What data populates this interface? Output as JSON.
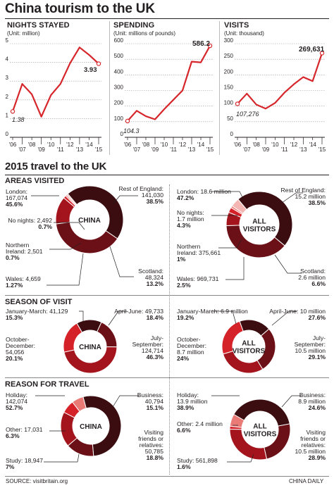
{
  "title": "China tourism to the UK",
  "line_charts": [
    {
      "title": "NIGHTS STAYED",
      "unit": "(Unit: million)",
      "y_ticks": [
        "0",
        "1",
        "2",
        "3",
        "4",
        "5"
      ],
      "x_top": [
        "'06",
        "'08",
        "'10",
        "'12",
        "'14"
      ],
      "x_bottom": [
        "'07",
        "'09",
        "'11",
        "'13",
        "'15"
      ],
      "first_label": "1.38",
      "last_label": "3.93"
    },
    {
      "title": "SPENDING",
      "unit": "(Unit: millions of pounds)",
      "y_ticks": [
        "0",
        "100",
        "200",
        "300",
        "400",
        "500",
        "600"
      ],
      "x_top": [
        "'06",
        "'08",
        "'10",
        "'12",
        "'14"
      ],
      "x_bottom": [
        "'07",
        "'09",
        "'11",
        "'13",
        "'15"
      ],
      "first_label": "104.3",
      "last_label": "586.2"
    },
    {
      "title": "VISITS",
      "unit": "(Unit: thousand)",
      "y_ticks": [
        "0",
        "50",
        "100",
        "150",
        "200",
        "250",
        "300"
      ],
      "x_top": [
        "'06",
        "'08",
        "'10",
        "'12",
        "'14"
      ],
      "x_bottom": [
        "'07",
        "'09",
        "'11",
        "'13",
        "'15"
      ],
      "first_label": "107,276",
      "last_label": "269,631"
    }
  ],
  "chart_data": [
    {
      "type": "line",
      "title": "NIGHTS STAYED",
      "ylabel": "(Unit: million)",
      "x": [
        "2006",
        "2007",
        "2008",
        "2009",
        "2010",
        "2011",
        "2012",
        "2013",
        "2014",
        "2015"
      ],
      "series": [
        {
          "values": [
            1.38,
            2.85,
            2.3,
            1.1,
            2.25,
            2.85,
            3.95,
            4.8,
            4.4,
            3.93
          ]
        }
      ],
      "ylim": [
        0,
        5
      ]
    },
    {
      "type": "line",
      "title": "SPENDING",
      "ylabel": "(Unit: millions of pounds)",
      "x": [
        "2006",
        "2007",
        "2008",
        "2009",
        "2010",
        "2011",
        "2012",
        "2013",
        "2014",
        "2015"
      ],
      "series": [
        {
          "values": [
            104.3,
            170,
            135,
            115,
            180,
            240,
            300,
            485,
            480,
            586.2
          ]
        }
      ],
      "ylim": [
        0,
        600
      ]
    },
    {
      "type": "line",
      "title": "VISITS",
      "ylabel": "(Unit: thousand)",
      "x": [
        "2006",
        "2007",
        "2008",
        "2009",
        "2010",
        "2011",
        "2012",
        "2013",
        "2014",
        "2015"
      ],
      "series": [
        {
          "values": [
            107.276,
            140,
            105,
            92,
            110,
            143,
            170,
            193,
            180,
            269.631
          ]
        }
      ],
      "ylim": [
        0,
        300
      ]
    },
    {
      "type": "pie",
      "title": "AREAS VISITED",
      "subtitle": "CHINA",
      "categories": [
        "London",
        "Rest of England",
        "Scotland",
        "Wales",
        "Northern Ireland",
        "No nights"
      ],
      "values": [
        45.6,
        38.5,
        13.2,
        1.27,
        0.7,
        0.7
      ]
    },
    {
      "type": "pie",
      "title": "AREAS VISITED",
      "subtitle": "ALL VISITORS",
      "categories": [
        "London",
        "Rest of England",
        "Scotland",
        "Wales",
        "Northern Ireland",
        "No nights"
      ],
      "values": [
        47.2,
        38.5,
        6.6,
        2.5,
        1,
        4.3
      ]
    },
    {
      "type": "pie",
      "title": "SEASON OF VISIT",
      "subtitle": "CHINA",
      "categories": [
        "January-March",
        "April-June",
        "July-September",
        "October-December"
      ],
      "values": [
        15.3,
        18.4,
        46.3,
        20.1
      ]
    },
    {
      "type": "pie",
      "title": "SEASON OF VISIT",
      "subtitle": "ALL VISITORS",
      "categories": [
        "January-March",
        "April-June",
        "July-September",
        "October-December"
      ],
      "values": [
        19.2,
        27.6,
        29.1,
        24
      ]
    },
    {
      "type": "pie",
      "title": "REASON FOR TRAVEL",
      "subtitle": "CHINA",
      "categories": [
        "Holiday",
        "Business",
        "Visiting friends or relatives",
        "Study",
        "Other"
      ],
      "values": [
        52.7,
        15.1,
        18.8,
        7,
        6.3
      ]
    },
    {
      "type": "pie",
      "title": "REASON FOR TRAVEL",
      "subtitle": "ALL VISITORS",
      "categories": [
        "Holiday",
        "Business",
        "Visiting friends or relatives",
        "Study",
        "Other"
      ],
      "values": [
        38.9,
        24.6,
        28.9,
        1.6,
        6.6
      ]
    }
  ],
  "section2_title": "2015 travel to the UK",
  "areas": {
    "title": "AREAS VISITED",
    "china": {
      "center": "CHINA",
      "london": [
        "London:",
        "167,074",
        "45.6%"
      ],
      "rest": [
        "Rest of England:",
        "141,030",
        "38.5%"
      ],
      "nonights": [
        "No nights: 2,492",
        "0.7%"
      ],
      "ni": [
        "Northern",
        "Ireland: 2,501",
        "0.7%"
      ],
      "wales": [
        "Wales: 4,659",
        "1.27%"
      ],
      "scotland": [
        "Scotland:",
        "48,324",
        "13.2%"
      ]
    },
    "all": {
      "center": [
        "ALL",
        "VISITORS"
      ],
      "london": [
        "London: 18.6 million",
        "47.2%"
      ],
      "rest": [
        "Rest of England:",
        "15.2 million",
        "38.5%"
      ],
      "nonights": [
        "No nights:",
        "1.7 million",
        "4.3%"
      ],
      "ni": [
        "Northern",
        "Ireland: 375,661",
        "1%"
      ],
      "wales": [
        "Wales: 969,731",
        "2.5%"
      ],
      "scotland": [
        "Scotland:",
        "2.6 million",
        "6.6%"
      ]
    }
  },
  "season": {
    "title": "SEASON OF VISIT",
    "china": {
      "center": "CHINA",
      "jm": [
        "January-March: 41,129",
        "15.3%"
      ],
      "aj": [
        "April-June: 49,733",
        "18.4%"
      ],
      "od": [
        "October-",
        "December:",
        "54,056",
        "20.1%"
      ],
      "js": [
        "July-",
        "September:",
        "124,714",
        "46.3%"
      ]
    },
    "all": {
      "center": [
        "ALL",
        "VISITORS"
      ],
      "jm": [
        "January-March: 6.9 million",
        "19.2%"
      ],
      "aj": [
        "April-June: 10 million",
        "27.6%"
      ],
      "od": [
        "October-",
        "December:",
        "8.7 million",
        "24%"
      ],
      "js": [
        "July-",
        "September:",
        "10.5 million",
        "29.1%"
      ]
    }
  },
  "reason": {
    "title": "REASON FOR TRAVEL",
    "china": {
      "center": "CHINA",
      "holiday": [
        "Holiday:",
        "142,074",
        "52.7%"
      ],
      "business": [
        "Business:",
        "40,794",
        "15.1%"
      ],
      "other": [
        "Other: 17,031",
        "6.3%"
      ],
      "study": [
        "Study: 18,947",
        "7%"
      ],
      "vfr": [
        "Visiting",
        "friends or",
        "relatives:",
        "50,785",
        "18.8%"
      ]
    },
    "all": {
      "center": [
        "ALL",
        "VISITORS"
      ],
      "holiday": [
        "Holiday:",
        "13.9 million",
        "38.9%"
      ],
      "business": [
        "Business:",
        "8.9 million",
        "24.6%"
      ],
      "other": [
        "Other: 2.4 million",
        "6.6%"
      ],
      "study": [
        "Study: 561,898",
        "1.6%"
      ],
      "vfr": [
        "Visiting",
        "friends or",
        "relatives:",
        "10.5 million",
        "28.9%"
      ]
    }
  },
  "footer": {
    "source": "SOURCE: visitbritain.org",
    "credit": "CHINA DAILY"
  },
  "colors": {
    "line": "#d7262b",
    "darkest": "#3b0d10",
    "dark": "#6b1016",
    "mid": "#a4141c",
    "bright": "#d52229",
    "light": "#e97a76",
    "pale": "#f3b6b2"
  }
}
